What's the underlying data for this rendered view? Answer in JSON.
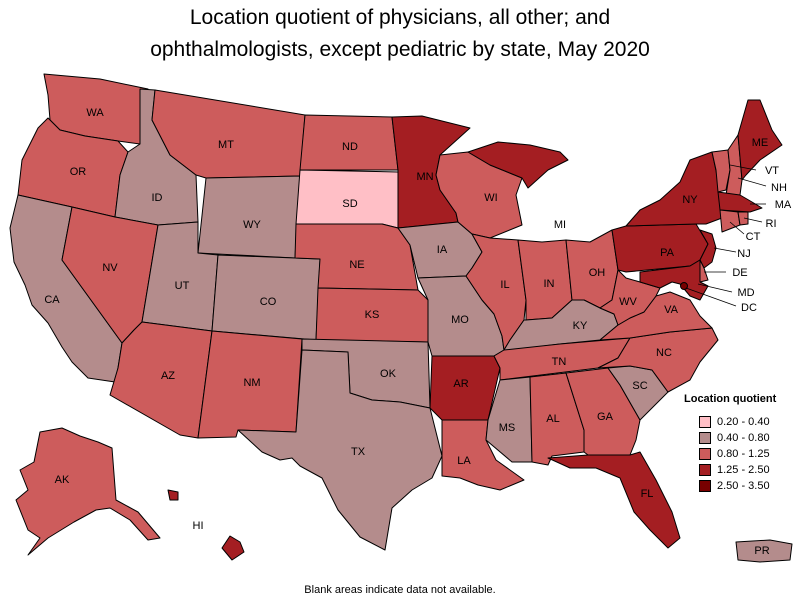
{
  "title": {
    "line1": "Location quotient of physicians, all other; and",
    "line2": "ophthalmologists, except pediatric by state, May 2020"
  },
  "colors": {
    "c1": "#ffbfc6",
    "c2": "#b48c8c",
    "c3": "#cd5c5c",
    "c4": "#a41e22",
    "c5": "#780000"
  },
  "legend": {
    "title": "Location quotient",
    "items": [
      {
        "label": "0.20 - 0.40",
        "color": "#ffbfc6"
      },
      {
        "label": "0.40 - 0.80",
        "color": "#b48c8c"
      },
      {
        "label": "0.80 - 1.25",
        "color": "#cd5c5c"
      },
      {
        "label": "1.25 - 2.50",
        "color": "#a41e22"
      },
      {
        "label": "2.50 - 3.50",
        "color": "#780000"
      }
    ]
  },
  "states": {
    "WA": "0.80 - 1.25",
    "OR": "0.80 - 1.25",
    "CA": "0.40 - 0.80",
    "ID": "0.40 - 0.80",
    "NV": "0.80 - 1.25",
    "MT": "0.80 - 1.25",
    "WY": "0.40 - 0.80",
    "UT": "0.40 - 0.80",
    "AZ": "0.80 - 1.25",
    "CO": "0.40 - 0.80",
    "NM": "0.80 - 1.25",
    "ND": "0.80 - 1.25",
    "SD": "0.20 - 0.40",
    "NE": "0.80 - 1.25",
    "KS": "0.80 - 1.25",
    "OK": "0.40 - 0.80",
    "TX": "0.40 - 0.80",
    "MN": "1.25 - 2.50",
    "IA": "0.40 - 0.80",
    "MO": "0.40 - 0.80",
    "AR": "1.25 - 2.50",
    "LA": "0.80 - 1.25",
    "WI": "0.80 - 1.25",
    "IL": "0.80 - 1.25",
    "MI": "1.25 - 2.50",
    "IN": "0.80 - 1.25",
    "OH": "0.80 - 1.25",
    "KY": "0.40 - 0.80",
    "TN": "0.80 - 1.25",
    "MS": "0.40 - 0.80",
    "AL": "0.80 - 1.25",
    "GA": "0.80 - 1.25",
    "FL": "1.25 - 2.50",
    "SC": "0.40 - 0.80",
    "NC": "0.80 - 1.25",
    "VA": "0.80 - 1.25",
    "WV": "0.80 - 1.25",
    "PA": "1.25 - 2.50",
    "NY": "1.25 - 2.50",
    "VT": "0.80 - 1.25",
    "NH": "0.80 - 1.25",
    "ME": "1.25 - 2.50",
    "MA": "1.25 - 2.50",
    "RI": "0.80 - 1.25",
    "CT": "0.80 - 1.25",
    "NJ": "1.25 - 2.50",
    "DE": "0.80 - 1.25",
    "MD": "1.25 - 2.50",
    "DC": "2.50 - 3.50",
    "AK": "0.80 - 1.25",
    "HI": "1.25 - 2.50",
    "PR": "0.40 - 0.80"
  },
  "footnote": "Blank areas indicate data not available."
}
